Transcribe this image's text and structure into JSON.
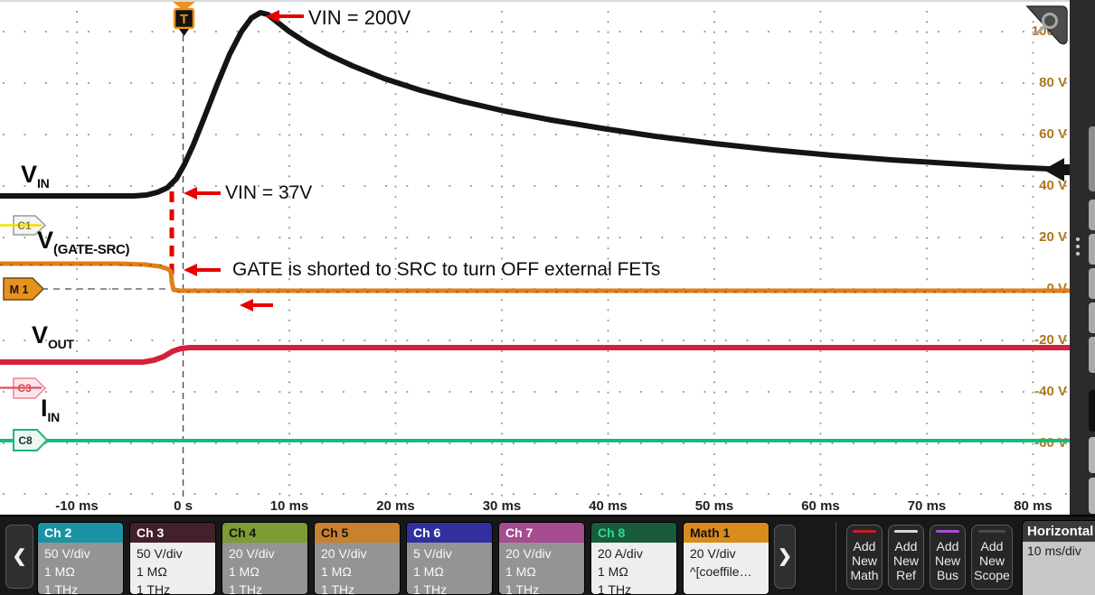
{
  "plot": {
    "trigger_flag": "T",
    "y_axis": [
      "100 V",
      "80 V",
      "60 V",
      "40 V",
      "20 V",
      "0 V",
      "-20 V",
      "-40 V",
      "-60 V"
    ],
    "x_axis": [
      "-10 ms",
      "0 s",
      "10 ms",
      "20 ms",
      "30 ms",
      "40 ms",
      "50 ms",
      "60 ms",
      "70 ms",
      "80 ms"
    ],
    "annotations": {
      "peak": "VIN = 200V",
      "step": "VIN = 37V",
      "gate": "GATE is shorted to SRC to turn OFF external FETs"
    },
    "trace_labels": {
      "vin": {
        "main": "V",
        "sub": "IN"
      },
      "gate_src": {
        "main": "V",
        "sub": "(GATE-SRC)"
      },
      "vout": {
        "main": "V",
        "sub": "OUT"
      },
      "iin": {
        "main": "I",
        "sub": "IN"
      }
    },
    "markers": {
      "c1": "C1",
      "m1": "M 1",
      "c3": "C3",
      "c8": "C8"
    }
  },
  "traces": {
    "vin": {
      "color": "#141414",
      "width": 6,
      "points": [
        [
          0,
          215
        ],
        [
          148,
          215
        ],
        [
          162,
          214
        ],
        [
          174,
          211
        ],
        [
          185,
          206
        ],
        [
          195,
          196
        ],
        [
          204,
          180
        ],
        [
          214,
          158
        ],
        [
          226,
          128
        ],
        [
          240,
          92
        ],
        [
          254,
          58
        ],
        [
          267,
          33
        ],
        [
          278,
          18
        ],
        [
          288,
          12
        ],
        [
          296,
          14
        ],
        [
          306,
          22
        ],
        [
          320,
          33
        ],
        [
          340,
          46
        ],
        [
          362,
          58
        ],
        [
          390,
          71
        ],
        [
          425,
          85
        ],
        [
          465,
          98
        ],
        [
          510,
          110
        ],
        [
          558,
          121
        ],
        [
          610,
          131
        ],
        [
          665,
          140
        ],
        [
          725,
          149
        ],
        [
          790,
          157
        ],
        [
          855,
          164
        ],
        [
          920,
          170
        ],
        [
          985,
          175
        ],
        [
          1050,
          179
        ],
        [
          1115,
          183
        ],
        [
          1183,
          186
        ]
      ]
    },
    "gate_src": {
      "color": "#e27d17",
      "width": 5,
      "points": [
        [
          0,
          290
        ],
        [
          130,
          290
        ],
        [
          160,
          291
        ],
        [
          176,
          293
        ],
        [
          186,
          296
        ],
        [
          189,
          299
        ],
        [
          190,
          310
        ],
        [
          192,
          319
        ],
        [
          200,
          320
        ],
        [
          1183,
          320
        ]
      ]
    },
    "vout": {
      "color": "#d5203c",
      "width": 6,
      "points": [
        [
          0,
          399
        ],
        [
          158,
          399
        ],
        [
          170,
          397
        ],
        [
          181,
          393
        ],
        [
          191,
          387
        ],
        [
          200,
          384
        ],
        [
          210,
          383
        ],
        [
          1183,
          383
        ]
      ]
    },
    "iin": {
      "color": "#0fbe7e",
      "width": 4,
      "points": [
        [
          0,
          486
        ],
        [
          1183,
          486
        ]
      ]
    }
  },
  "bottom_bar": {
    "channels": [
      {
        "name": "Ch 2",
        "rows": [
          "50 V/div",
          "1 MΩ",
          "1 THz"
        ],
        "header_bg": "#1b93a5",
        "header_fg": "#ffffff",
        "selected": false
      },
      {
        "name": "Ch 3",
        "rows": [
          "50 V/div",
          "1 MΩ",
          "1 THz"
        ],
        "header_bg": "#44202b",
        "header_fg": "#ffffff",
        "selected": true
      },
      {
        "name": "Ch 4",
        "rows": [
          "20 V/div",
          "1 MΩ",
          "1 THz"
        ],
        "header_bg": "#7d9c33",
        "header_fg": "#141414",
        "selected": false
      },
      {
        "name": "Ch 5",
        "rows": [
          "20 V/div",
          "1 MΩ",
          "1 THz"
        ],
        "header_bg": "#c8812d",
        "header_fg": "#141414",
        "selected": false
      },
      {
        "name": "Ch 6",
        "rows": [
          "5 V/div",
          "1 MΩ",
          "1 THz"
        ],
        "header_bg": "#32309f",
        "header_fg": "#ffffff",
        "selected": false
      },
      {
        "name": "Ch 7",
        "rows": [
          "20 V/div",
          "1 MΩ",
          "1 THz"
        ],
        "header_bg": "#a54b90",
        "header_fg": "#ffffff",
        "selected": false
      },
      {
        "name": "Ch 8",
        "rows": [
          "20 A/div",
          "1 MΩ",
          "1 THz"
        ],
        "header_bg": "#1a5b3e",
        "header_fg": "#2adf8d",
        "selected": true
      },
      {
        "name": "Math 1",
        "rows": [
          "20 V/div",
          "^[coeffile…"
        ],
        "header_bg": "#d98b1b",
        "header_fg": "#141414",
        "selected": true
      }
    ],
    "back_label": "❮",
    "forward_label": "❯",
    "add_buttons": [
      {
        "id": "add-new-math-button",
        "lines": [
          "Add",
          "New",
          "Math"
        ],
        "accent": "#c01f24"
      },
      {
        "id": "add-new-ref-button",
        "lines": [
          "Add",
          "New",
          "Ref"
        ],
        "accent": "#d8d8e2"
      },
      {
        "id": "add-new-bus-button",
        "lines": [
          "Add",
          "New",
          "Bus"
        ],
        "accent": "#a94fd6"
      },
      {
        "id": "add-new-scope-button",
        "lines": [
          "Add",
          "New",
          "Scope"
        ],
        "accent": "#4a4a4a"
      }
    ],
    "horizontal": {
      "title": "Horizontal",
      "scale": "10 ms/div"
    }
  }
}
